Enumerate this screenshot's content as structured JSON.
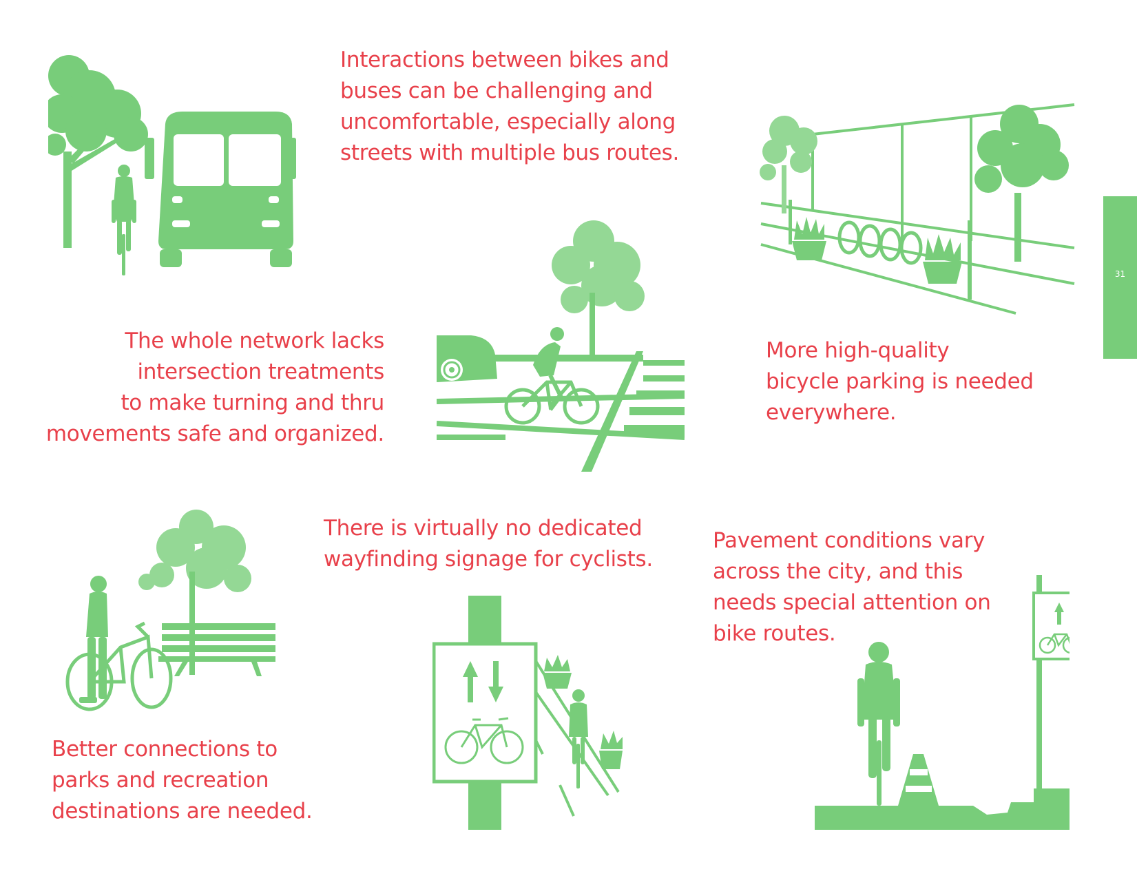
{
  "colors": {
    "text": "#e8404a",
    "illustration": "#78cd7a",
    "illustration_light": "#94d895",
    "tab": "#78cd7a"
  },
  "captions": {
    "bikes_buses": "Interactions between bikes and\nbuses can be challenging and\nuncomfortable, especially along\nstreets with multiple bus routes.",
    "intersections": "The whole network lacks\nintersection treatments\nto make turning and thru\nmovements safe and organized.",
    "parking": "More high-quality\nbicycle parking is needed\neverywhere.",
    "parks": "Better connections to\nparks and recreation\ndestinations are needed.",
    "wayfinding": "There is virtually no dedicated\nwayfinding signage for cyclists.",
    "pavement": "Pavement conditions vary\nacross the city, and this\nneeds special attention on\nbike routes."
  },
  "page_number": "31",
  "icons": [
    "tree-icon",
    "bus-icon",
    "cyclist-icon",
    "car-icon",
    "crosswalk-icon",
    "bike-rack-icon",
    "planter-icon",
    "bench-icon",
    "bicycle-icon",
    "sign-icon",
    "traffic-cone-icon"
  ]
}
